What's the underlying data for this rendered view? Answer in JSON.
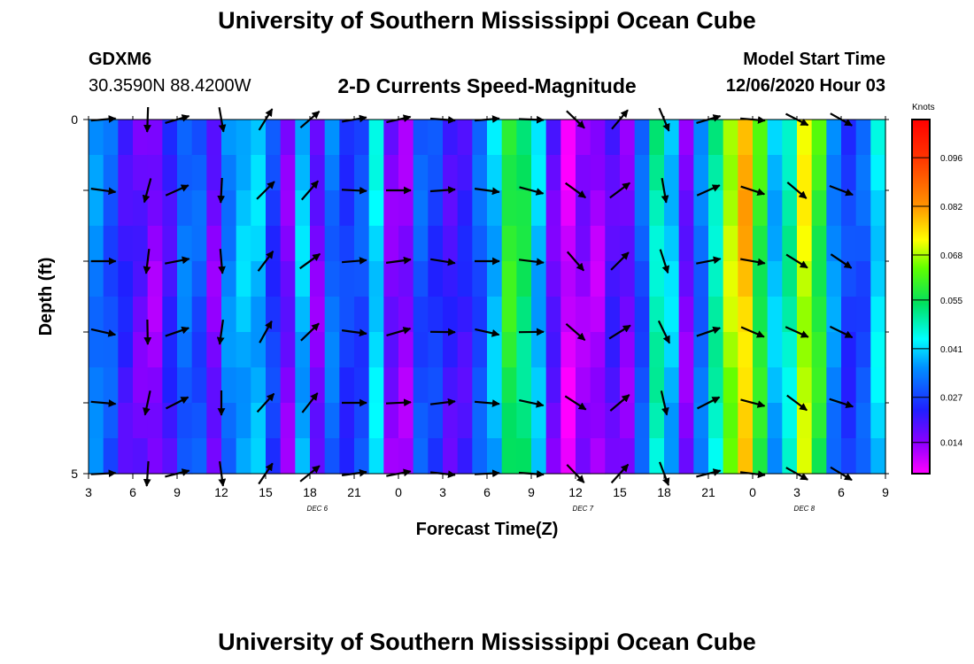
{
  "page": {
    "title_top": "University of Southern Mississippi Ocean Cube",
    "title_bottom": "University of Southern Mississippi Ocean Cube",
    "station_id": "GDXM6",
    "station_coords": "30.3590N 88.4200W",
    "plot_title": "2-D Currents Speed-Magnitude",
    "model_start_label": "Model Start Time",
    "model_start_value": "12/06/2020 Hour 03"
  },
  "chart_data": {
    "type": "heatmap",
    "title": "2-D Currents Speed-Magnitude",
    "xlabel": "Forecast Time(Z)",
    "ylabel": "Depth (ft)",
    "units": "Knots",
    "x_range_hours": [
      0,
      54
    ],
    "y_range_ft": [
      0,
      5
    ],
    "y_ticks": [
      "0",
      "5"
    ],
    "x_ticks": [
      "3",
      "6",
      "9",
      "12",
      "15",
      "18",
      "21",
      "0",
      "3",
      "6",
      "9",
      "12",
      "15",
      "18",
      "21",
      "0",
      "3",
      "6",
      "9"
    ],
    "day_labels": [
      "DEC 6",
      "DEC 7",
      "DEC 8"
    ],
    "colorbar": {
      "labels": [
        "0.096",
        "0.082",
        "0.068",
        "0.055",
        "0.041",
        "0.027",
        "0.014"
      ],
      "values": [
        0.096,
        0.082,
        0.068,
        0.055,
        0.041,
        0.027,
        0.014
      ],
      "range": [
        0.005,
        0.107
      ]
    },
    "depth_rows_ft": [
      0.25,
      0.75,
      1.25,
      1.75,
      2.25,
      2.75,
      3.25,
      3.75,
      4.25,
      4.75
    ],
    "speed_knots_by_hour": [
      0.035,
      0.03,
      0.022,
      0.018,
      0.014,
      0.022,
      0.033,
      0.03,
      0.016,
      0.035,
      0.04,
      0.04,
      0.027,
      0.016,
      0.04,
      0.016,
      0.033,
      0.027,
      0.029,
      0.043,
      0.016,
      0.014,
      0.03,
      0.027,
      0.021,
      0.022,
      0.03,
      0.04,
      0.06,
      0.055,
      0.04,
      0.018,
      0.008,
      0.014,
      0.012,
      0.02,
      0.016,
      0.03,
      0.05,
      0.041,
      0.016,
      0.033,
      0.05,
      0.07,
      0.08,
      0.06,
      0.04,
      0.05,
      0.072,
      0.06,
      0.036,
      0.027,
      0.03,
      0.043
    ],
    "columns_hours": [
      0.5,
      1.5,
      2.5,
      3.5,
      4.5,
      5.5,
      6.5,
      7.5,
      8.5,
      9.5,
      10.5,
      11.5,
      12.5,
      13.5,
      14.5,
      15.5,
      16.5,
      17.5,
      18.5,
      19.5,
      20.5,
      21.5,
      22.5,
      23.5,
      24.5,
      25.5,
      26.5,
      27.5,
      28.5,
      29.5,
      30.5,
      31.5,
      32.5,
      33.5,
      34.5,
      35.5,
      36.5,
      37.5,
      38.5,
      39.5,
      40.5,
      41.5,
      42.5,
      43.5,
      44.5,
      45.5,
      46.5,
      47.5,
      48.5,
      49.5,
      50.5,
      51.5,
      52.5,
      53.5
    ],
    "arrow_hours": [
      1,
      4,
      6,
      9,
      12,
      15,
      18,
      21,
      24,
      27,
      30,
      33,
      36,
      39,
      42,
      45,
      48,
      51
    ],
    "arrow_depths_ft": [
      0,
      1,
      2,
      3,
      4,
      5
    ],
    "arrow_dir_deg_by_hour": [
      5,
      95,
      -20,
      90,
      -55,
      -45,
      0,
      -10,
      0,
      5,
      5,
      40,
      -40,
      70,
      -20,
      15,
      30,
      25
    ]
  }
}
